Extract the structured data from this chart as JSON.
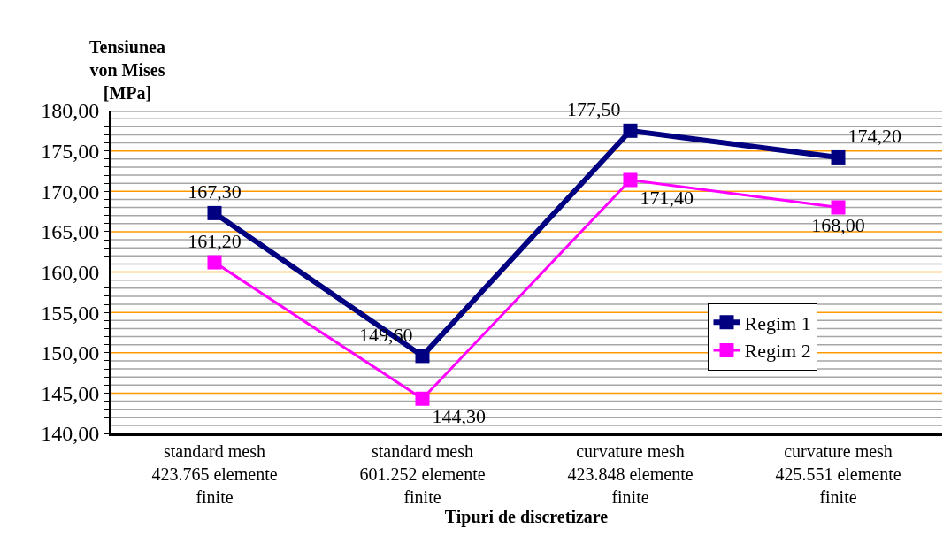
{
  "chart_data": {
    "type": "line",
    "xlabel": "Tipuri de discretizare",
    "ylabel": "Tensiunea\nvon Mises\n[MPa]",
    "categories": [
      "standard mesh\n423.765 elemente\nfinite",
      "standard mesh\n601.252 elemente\nfinite",
      "curvature mesh\n423.848 elemente\nfinite",
      "curvature mesh\n425.551 elemente\nfinite"
    ],
    "series": [
      {
        "name": "Regim 1",
        "color": "#000080",
        "values": [
          167.3,
          149.6,
          177.5,
          174.2
        ],
        "value_labels": [
          "167,30",
          "149,60",
          "177,50",
          "174,20"
        ]
      },
      {
        "name": "Regim 2",
        "color": "#ff00ff",
        "values": [
          161.2,
          144.3,
          171.4,
          168.0
        ],
        "value_labels": [
          "161,20",
          "144,30",
          "171,40",
          "168,00"
        ]
      }
    ],
    "ylim": [
      140,
      180
    ],
    "yticks": [
      {
        "value": 140,
        "label": "140,00"
      },
      {
        "value": 141,
        "label": null
      },
      {
        "value": 142,
        "label": null
      },
      {
        "value": 143,
        "label": null
      },
      {
        "value": 144,
        "label": null
      },
      {
        "value": 145,
        "label": "145,00"
      },
      {
        "value": 146,
        "label": null
      },
      {
        "value": 147,
        "label": null
      },
      {
        "value": 148,
        "label": null
      },
      {
        "value": 149,
        "label": null
      },
      {
        "value": 150,
        "label": "150,00"
      },
      {
        "value": 151,
        "label": null
      },
      {
        "value": 152,
        "label": null
      },
      {
        "value": 153,
        "label": null
      },
      {
        "value": 154,
        "label": null
      },
      {
        "value": 155,
        "label": "155,00"
      },
      {
        "value": 156,
        "label": null
      },
      {
        "value": 157,
        "label": null
      },
      {
        "value": 158,
        "label": null
      },
      {
        "value": 159,
        "label": null
      },
      {
        "value": 160,
        "label": "160,00"
      },
      {
        "value": 161,
        "label": null
      },
      {
        "value": 162,
        "label": null
      },
      {
        "value": 163,
        "label": null
      },
      {
        "value": 164,
        "label": null
      },
      {
        "value": 165,
        "label": "165,00"
      },
      {
        "value": 166,
        "label": null
      },
      {
        "value": 167,
        "label": null
      },
      {
        "value": 168,
        "label": null
      },
      {
        "value": 169,
        "label": null
      },
      {
        "value": 170,
        "label": "170,00"
      },
      {
        "value": 171,
        "label": null
      },
      {
        "value": 172,
        "label": null
      },
      {
        "value": 173,
        "label": null
      },
      {
        "value": 174,
        "label": null
      },
      {
        "value": 175,
        "label": "175,00"
      },
      {
        "value": 176,
        "label": null
      },
      {
        "value": 177,
        "label": null
      },
      {
        "value": 178,
        "label": null
      },
      {
        "value": 179,
        "label": null
      },
      {
        "value": 180,
        "label": "180,00"
      }
    ],
    "grid": "y",
    "legend": "right",
    "marker": "square",
    "line_style": "solid"
  }
}
